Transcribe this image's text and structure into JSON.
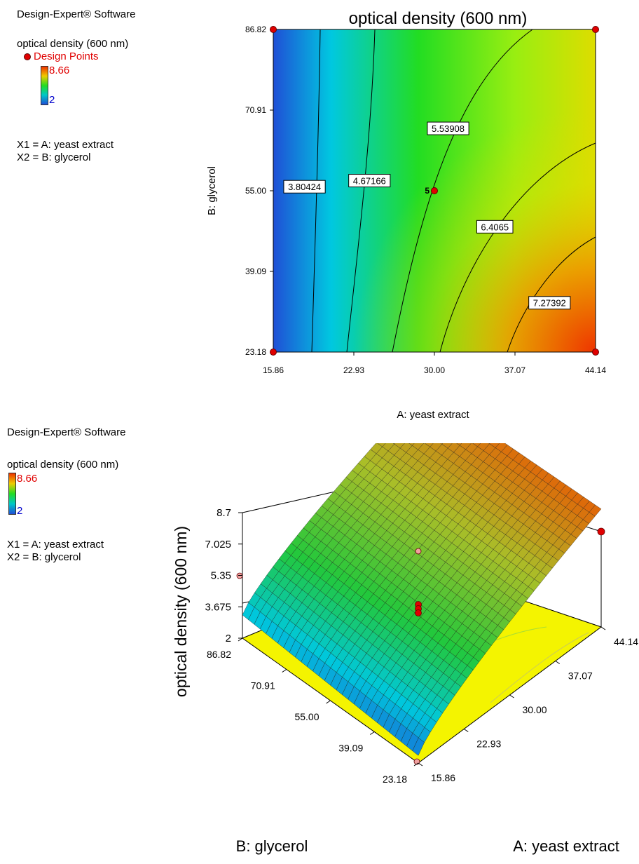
{
  "sidebar_top": {
    "software": "Design-Expert® Software",
    "response": "optical density (600 nm)",
    "design_points": "Design Points",
    "max": "8.66",
    "min": "2",
    "x1": "X1 = A: yeast extract",
    "x2": "X2 = B: glycerol"
  },
  "sidebar_bottom": {
    "software": "Design-Expert® Software",
    "response": "optical density (600 nm)",
    "max": "8.66",
    "min": "2",
    "x1": "X1 = A: yeast extract",
    "x2": "X2 = B: glycerol"
  },
  "colors": {
    "low": "#1f4fd6",
    "mid": "#22dd22",
    "high": "#ee3300",
    "floor": "#f4f400",
    "point": "#e00000"
  },
  "chart_data": [
    {
      "type": "contour",
      "title": "optical density (600 nm)",
      "xlabel": "A: yeast extract",
      "ylabel": "B: glycerol",
      "x_ticks": [
        "15.86",
        "22.93",
        "30.00",
        "37.07",
        "44.14"
      ],
      "y_ticks": [
        "23.18",
        "39.09",
        "55.00",
        "70.91",
        "86.82"
      ],
      "xlim": [
        15.86,
        44.14
      ],
      "ylim": [
        23.18,
        86.82
      ],
      "contour_labels": [
        {
          "text": "3.80424",
          "x": 18.6,
          "y": 55.8
        },
        {
          "text": "4.67166",
          "x": 24.3,
          "y": 57.0
        },
        {
          "text": "5.53908",
          "x": 31.2,
          "y": 67.3
        },
        {
          "text": "6.4065",
          "x": 35.3,
          "y": 47.9
        },
        {
          "text": "7.27392",
          "x": 40.1,
          "y": 32.9
        }
      ],
      "design_points": [
        {
          "x": 15.86,
          "y": 86.82
        },
        {
          "x": 44.14,
          "y": 86.82
        },
        {
          "x": 15.86,
          "y": 23.18
        },
        {
          "x": 44.14,
          "y": 23.18
        },
        {
          "x": 30.0,
          "y": 55.0,
          "label": "5"
        }
      ]
    },
    {
      "type": "surface",
      "zlabel": "optical density (600 nm)",
      "xlabel": "A: yeast extract",
      "ylabel": "B: glycerol",
      "z_ticks": [
        "2",
        "3.675",
        "5.35",
        "7.025",
        "8.7"
      ],
      "x_ticks": [
        "15.86",
        "22.93",
        "30.00",
        "37.07",
        "44.14"
      ],
      "y_ticks": [
        "23.18",
        "39.09",
        "55.00",
        "70.91",
        "86.82"
      ],
      "zlim": [
        2,
        8.7
      ]
    }
  ]
}
